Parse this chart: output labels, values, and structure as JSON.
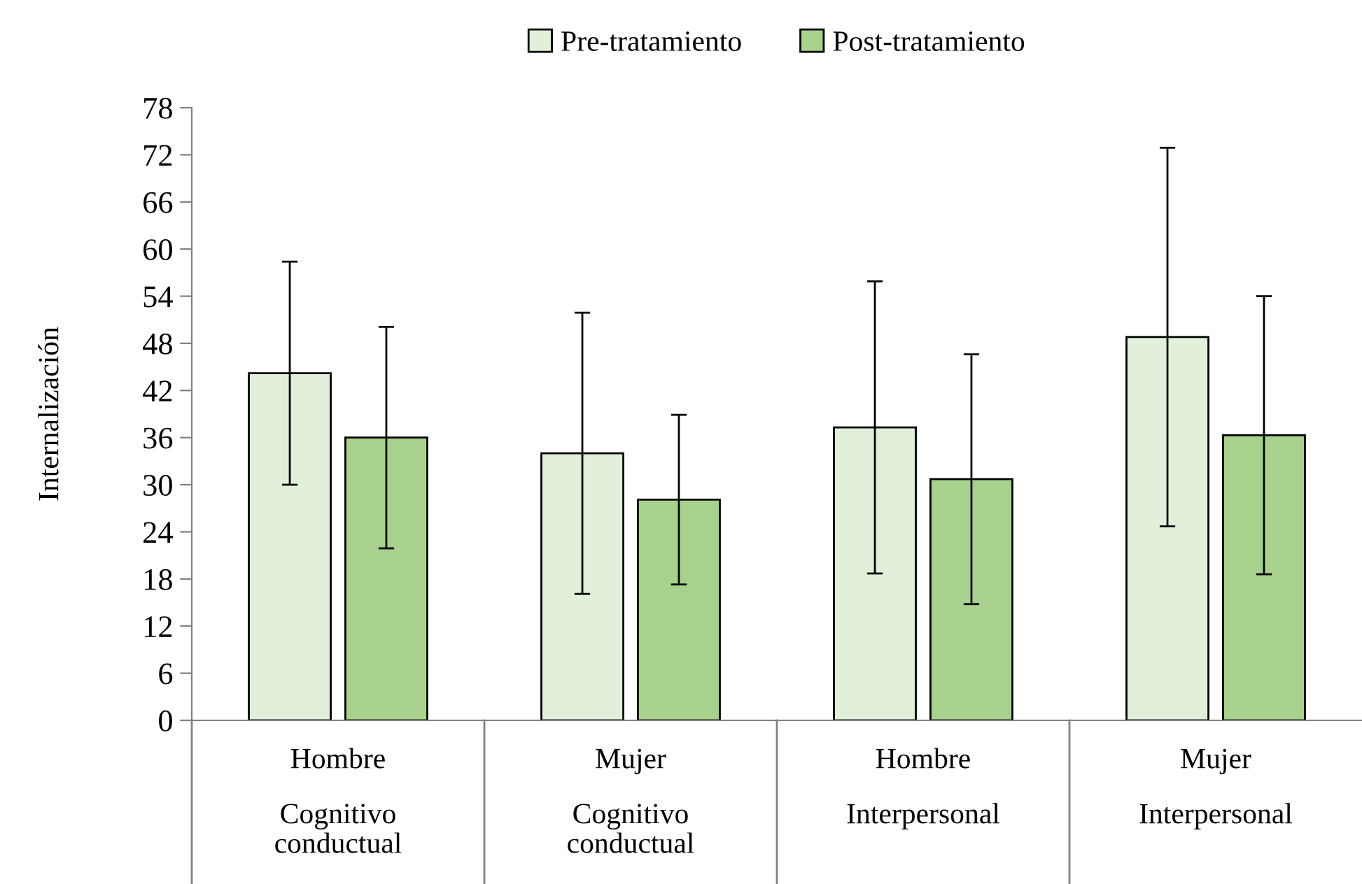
{
  "chart_data": {
    "type": "bar",
    "ylabel": "Internalización",
    "categories": [
      "Hombre\nCognitivo\nconductual",
      "Mujer\nCognitivo\nconductual",
      "Hombre\nInterpersonal",
      "Mujer\nInterpersonal"
    ],
    "series": [
      {
        "name": "Pre-tratamiento",
        "color": "#e2efda",
        "values": [
          44.2,
          34.0,
          37.3,
          48.8
        ],
        "errors": [
          14.2,
          17.9,
          18.6,
          24.1
        ]
      },
      {
        "name": "Post-tratamiento",
        "color": "#a9d18e",
        "values": [
          36.0,
          28.1,
          30.7,
          36.3
        ],
        "errors": [
          14.1,
          10.8,
          15.9,
          17.7
        ]
      }
    ],
    "ylim": [
      0,
      78
    ],
    "yticks": [
      0,
      6,
      12,
      18,
      24,
      30,
      36,
      42,
      48,
      54,
      60,
      66,
      72,
      78
    ],
    "grid": false,
    "legend": "top"
  }
}
